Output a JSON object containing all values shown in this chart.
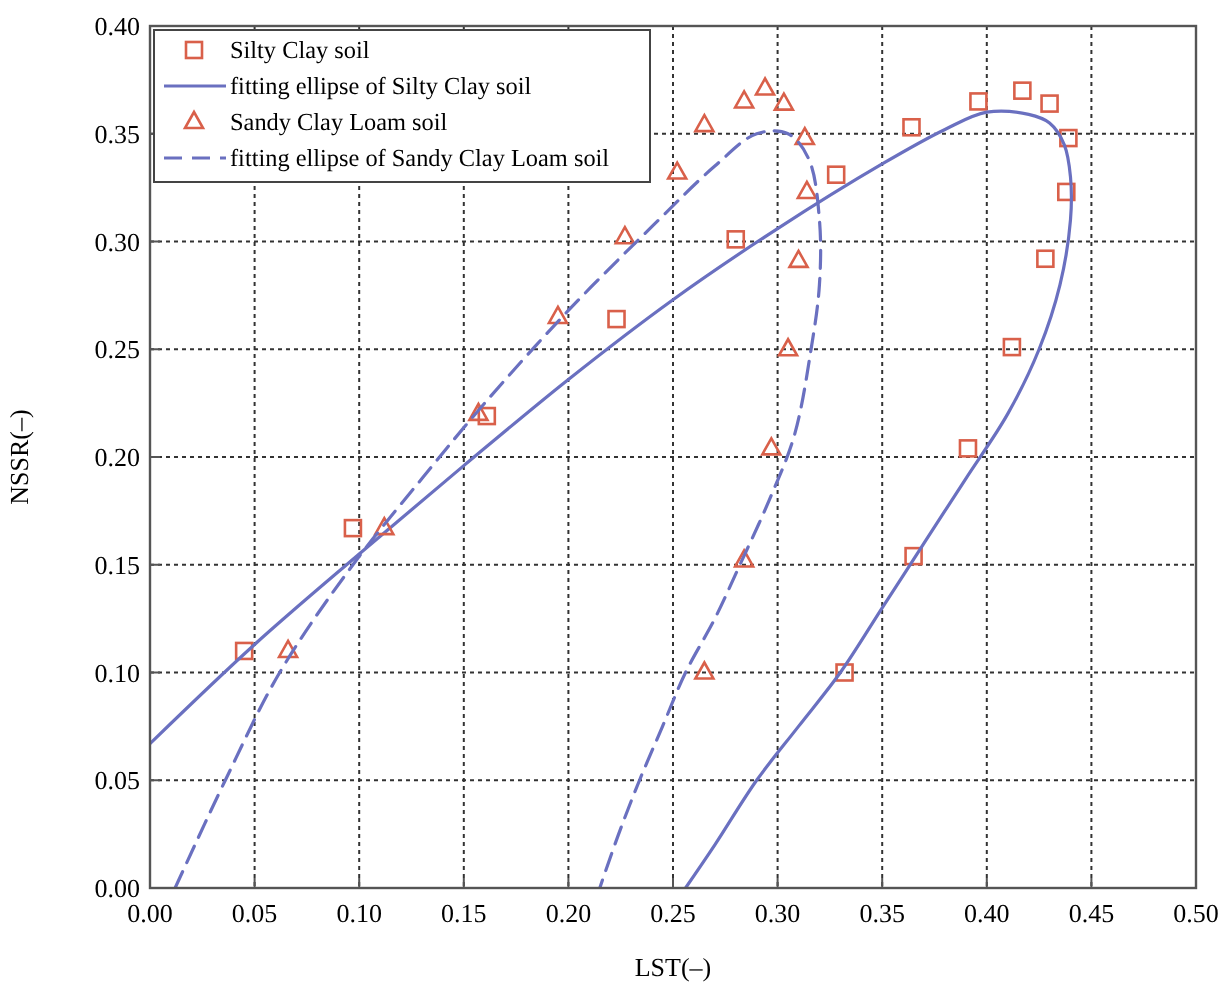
{
  "chart_data": {
    "type": "scatter",
    "xlabel": "LST(–)",
    "ylabel": "NSSR(–)",
    "xlim": [
      0,
      0.5
    ],
    "ylim": [
      0,
      0.4
    ],
    "xticks": [
      {
        "value": 0,
        "label": "0.00"
      },
      {
        "value": 0.05,
        "label": "0.05"
      },
      {
        "value": 0.1,
        "label": "0.10"
      },
      {
        "value": 0.15,
        "label": "0.15"
      },
      {
        "value": 0.2,
        "label": "0.20"
      },
      {
        "value": 0.25,
        "label": "0.25"
      },
      {
        "value": 0.3,
        "label": "0.30"
      },
      {
        "value": 0.35,
        "label": "0.35"
      },
      {
        "value": 0.4,
        "label": "0.40"
      },
      {
        "value": 0.45,
        "label": "0.45"
      },
      {
        "value": 0.5,
        "label": "0.50"
      }
    ],
    "yticks": [
      {
        "value": 0,
        "label": "0.00"
      },
      {
        "value": 0.05,
        "label": "0.05"
      },
      {
        "value": 0.1,
        "label": "0.10"
      },
      {
        "value": 0.15,
        "label": "0.15"
      },
      {
        "value": 0.2,
        "label": "0.20"
      },
      {
        "value": 0.25,
        "label": "0.25"
      },
      {
        "value": 0.3,
        "label": "0.30"
      },
      {
        "value": 0.35,
        "label": "0.35"
      },
      {
        "value": 0.4,
        "label": "0.40"
      }
    ],
    "grid": true,
    "legend": "top left",
    "series": [
      {
        "name": "Silty Clay soil",
        "type": "scatter",
        "marker": "square",
        "color": "#d9604a",
        "x": [
          0.045,
          0.097,
          0.161,
          0.223,
          0.28,
          0.328,
          0.364,
          0.396,
          0.417,
          0.43,
          0.439,
          0.438,
          0.428,
          0.412,
          0.391,
          0.365,
          0.332
        ],
        "values": [
          0.11,
          0.167,
          0.219,
          0.264,
          0.301,
          0.331,
          0.353,
          0.365,
          0.37,
          0.364,
          0.348,
          0.323,
          0.292,
          0.251,
          0.204,
          0.154,
          0.1
        ]
      },
      {
        "name": "fitting ellipse of Silty Clay soil",
        "type": "line",
        "line_style": "solid",
        "color": "#6a70c0",
        "x": [
          0,
          0.05,
          0.1,
          0.15,
          0.2,
          0.25,
          0.3,
          0.35,
          0.38,
          0.4,
          0.42,
          0.43,
          0.437,
          0.44,
          0.44,
          0.435,
          0.425,
          0.41,
          0.39,
          0.37,
          0.35,
          0.33,
          0.31,
          0.29,
          0.27,
          0.256
        ],
        "values": [
          0.067,
          0.113,
          0.155,
          0.196,
          0.236,
          0.273,
          0.306,
          0.336,
          0.352,
          0.36,
          0.359,
          0.355,
          0.345,
          0.33,
          0.31,
          0.28,
          0.25,
          0.22,
          0.19,
          0.16,
          0.13,
          0.1,
          0.075,
          0.05,
          0.02,
          0
        ]
      },
      {
        "name": "Sandy Clay Loam soil",
        "type": "scatter",
        "marker": "triangle",
        "color": "#d9604a",
        "x": [
          0.066,
          0.112,
          0.157,
          0.195,
          0.227,
          0.252,
          0.265,
          0.284,
          0.294,
          0.303,
          0.313,
          0.314,
          0.31,
          0.305,
          0.297,
          0.284,
          0.265
        ],
        "values": [
          0.11,
          0.167,
          0.22,
          0.265,
          0.302,
          0.332,
          0.354,
          0.365,
          0.371,
          0.364,
          0.348,
          0.323,
          0.291,
          0.25,
          0.204,
          0.152,
          0.1
        ]
      },
      {
        "name": "fitting ellipse of Sandy Clay Loam soil",
        "type": "line",
        "line_style": "dashed",
        "color": "#6a70c0",
        "x": [
          0.012,
          0.036,
          0.062,
          0.097,
          0.13,
          0.16,
          0.2,
          0.24,
          0.27,
          0.29,
          0.305,
          0.315,
          0.32,
          0.32,
          0.316,
          0.308,
          0.296,
          0.282,
          0.27,
          0.256,
          0.245,
          0.234,
          0.224,
          0.215
        ],
        "values": [
          0,
          0.05,
          0.1,
          0.15,
          0.19,
          0.225,
          0.268,
          0.307,
          0.335,
          0.35,
          0.35,
          0.338,
          0.31,
          0.28,
          0.25,
          0.21,
          0.18,
          0.15,
          0.125,
          0.1,
          0.075,
          0.05,
          0.025,
          0
        ]
      }
    ]
  }
}
